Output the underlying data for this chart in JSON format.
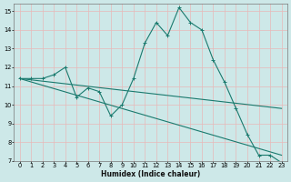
{
  "title": "",
  "xlabel": "Humidex (Indice chaleur)",
  "background_color": "#cde8e8",
  "grid_color": "#e8b8b8",
  "line_color": "#1a7a6e",
  "xlim": [
    -0.5,
    23.5
  ],
  "ylim": [
    7,
    15.4
  ],
  "xticks": [
    0,
    1,
    2,
    3,
    4,
    5,
    6,
    7,
    8,
    9,
    10,
    11,
    12,
    13,
    14,
    15,
    16,
    17,
    18,
    19,
    20,
    21,
    22,
    23
  ],
  "yticks": [
    7,
    8,
    9,
    10,
    11,
    12,
    13,
    14,
    15
  ],
  "series1": {
    "x": [
      0,
      1,
      2,
      3,
      4,
      5,
      6,
      7,
      8,
      9,
      10,
      11,
      12,
      13,
      14,
      15,
      16,
      17,
      18,
      19,
      20,
      21,
      22,
      23
    ],
    "y": [
      11.4,
      11.4,
      11.4,
      11.6,
      12.0,
      10.4,
      10.9,
      10.7,
      9.4,
      10.0,
      11.4,
      13.3,
      14.4,
      13.7,
      15.2,
      14.4,
      14.0,
      12.4,
      11.2,
      9.8,
      8.4,
      7.3,
      7.3,
      6.9
    ]
  },
  "series2": {
    "x": [
      0,
      23
    ],
    "y": [
      11.4,
      7.3
    ]
  },
  "series3": {
    "x": [
      0,
      23
    ],
    "y": [
      11.4,
      9.8
    ]
  },
  "xlabel_fontsize": 5.5,
  "tick_fontsize": 4.8,
  "marker_size": 2.5,
  "linewidth": 0.8
}
